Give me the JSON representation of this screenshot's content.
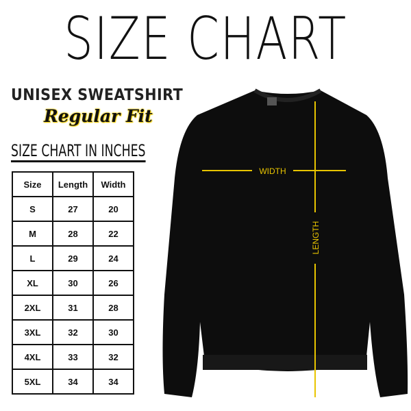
{
  "title": "SIZE CHART",
  "product": "UNISEX SWEATSHIRT",
  "fit": "Regular Fit",
  "units_heading": "SIZE CHART IN INCHES",
  "table": {
    "headers": [
      "Size",
      "Length",
      "Width"
    ],
    "rows": [
      [
        "S",
        "27",
        "20"
      ],
      [
        "M",
        "28",
        "22"
      ],
      [
        "L",
        "29",
        "24"
      ],
      [
        "XL",
        "30",
        "26"
      ],
      [
        "2XL",
        "31",
        "28"
      ],
      [
        "3XL",
        "32",
        "30"
      ],
      [
        "4XL",
        "33",
        "32"
      ],
      [
        "5XL",
        "34",
        "34"
      ]
    ]
  },
  "diagram": {
    "width_label": "WIDTH",
    "length_label": "LENGTH",
    "garment_color": "#0d0d0d",
    "line_color": "#e8c400"
  }
}
